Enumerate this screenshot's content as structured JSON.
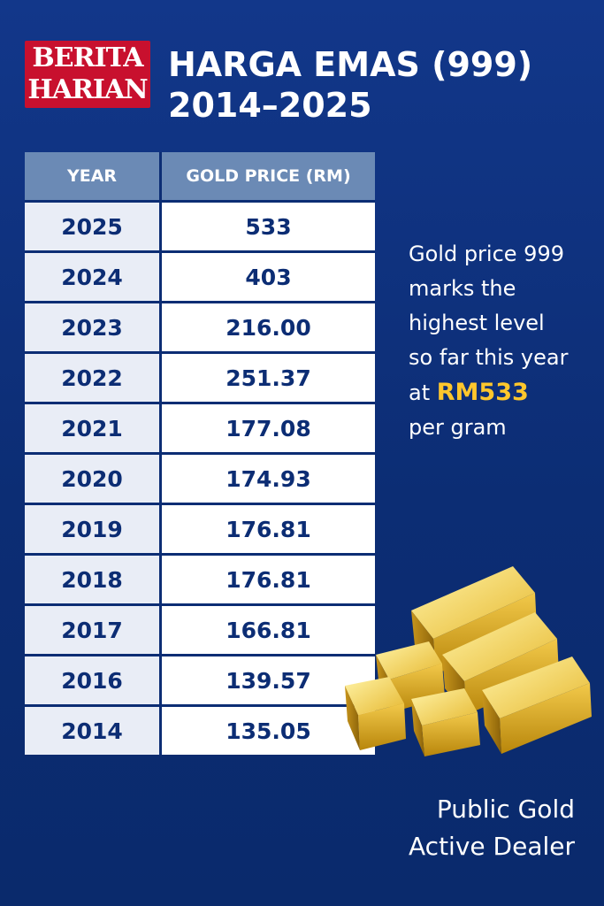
{
  "logo": {
    "line1": "BERITA",
    "line2": "HARIAN"
  },
  "title": {
    "line1": "HARGA EMAS (999)",
    "line2": "2014–2025"
  },
  "table": {
    "headers": [
      "YEAR",
      "GOLD PRICE (RM)"
    ],
    "rows": [
      {
        "year": "2025",
        "price": "533"
      },
      {
        "year": "2024",
        "price": "403"
      },
      {
        "year": "2023",
        "price": "216.00"
      },
      {
        "year": "2022",
        "price": "251.37"
      },
      {
        "year": "2021",
        "price": "177.08"
      },
      {
        "year": "2020",
        "price": "174.93"
      },
      {
        "year": "2019",
        "price": "176.81"
      },
      {
        "year": "2018",
        "price": "176.81"
      },
      {
        "year": "2017",
        "price": "166.81"
      },
      {
        "year": "2016",
        "price": "139.57"
      },
      {
        "year": "2014",
        "price": "135.05"
      }
    ]
  },
  "side_note": {
    "line1": "Gold price 999",
    "line2": "marks the",
    "line3": "highest level",
    "line4": "so far this year",
    "line5_prefix": "at ",
    "line5_highlight": "RM533",
    "line6": "per gram"
  },
  "footer": {
    "line1": "Public Gold",
    "line2": "Active Dealer"
  },
  "colors": {
    "background": "#0d2f78",
    "logo_red": "#c8102e",
    "header_blue": "#6b8ab5",
    "highlight_gold": "#ffc72c"
  },
  "icons": {
    "gold_bars": "gold-bars-illustration"
  }
}
